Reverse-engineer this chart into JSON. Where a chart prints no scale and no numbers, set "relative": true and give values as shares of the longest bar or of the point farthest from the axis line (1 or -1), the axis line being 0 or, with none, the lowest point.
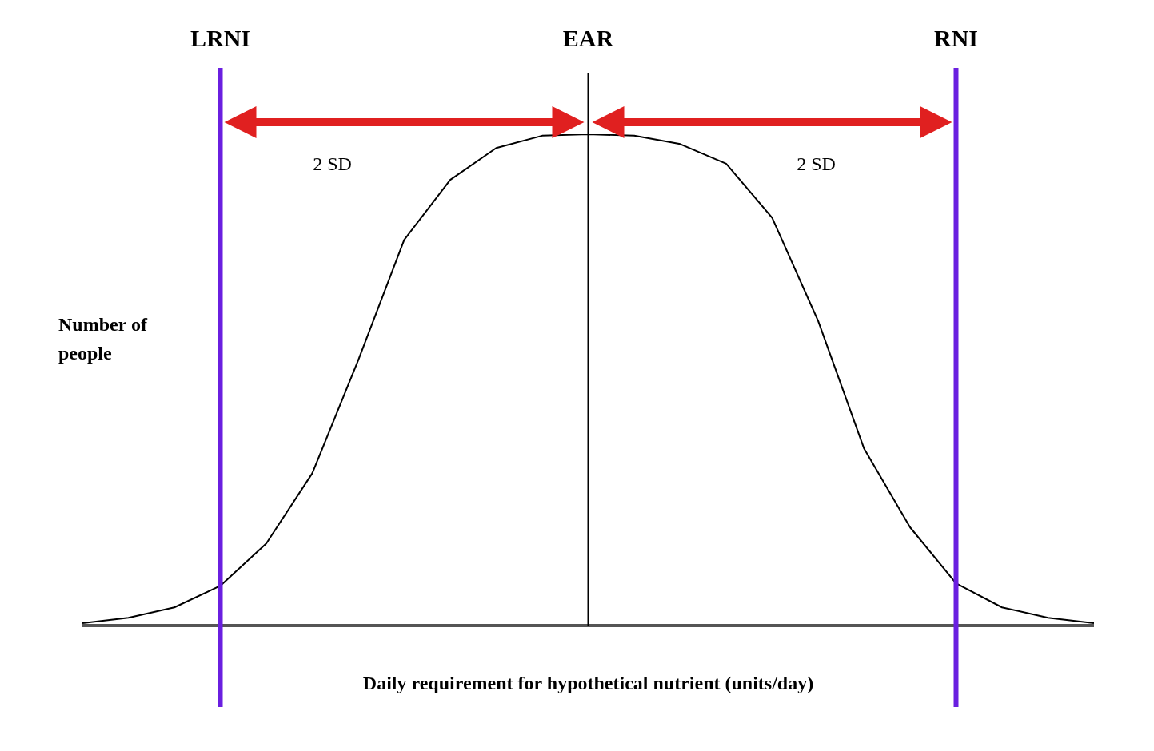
{
  "chart_data": {
    "type": "line",
    "relative": true,
    "xlabel": "Daily requirement for hypothetical nutrient (units/day)",
    "ylabel": "Number of people",
    "categories": [
      null,
      null,
      null,
      null,
      null,
      null,
      null,
      null,
      null,
      null,
      null,
      null,
      null,
      null,
      null,
      null,
      null,
      null,
      null,
      null,
      null,
      null,
      null
    ],
    "series": [
      {
        "color": "#000000",
        "values": [
          0.005,
          0.016,
          0.037,
          0.081,
          0.167,
          0.31,
          0.54,
          0.785,
          0.907,
          0.972,
          0.997,
          1,
          0.997,
          0.98,
          0.94,
          0.83,
          0.62,
          0.36,
          0.2,
          0.086,
          0.037,
          0.016,
          0.005
        ]
      }
    ],
    "annotations": [
      "LRNI",
      "EAR",
      "RNI",
      "2 SD",
      "2 SD"
    ],
    "marker": "none",
    "grid": false
  }
}
